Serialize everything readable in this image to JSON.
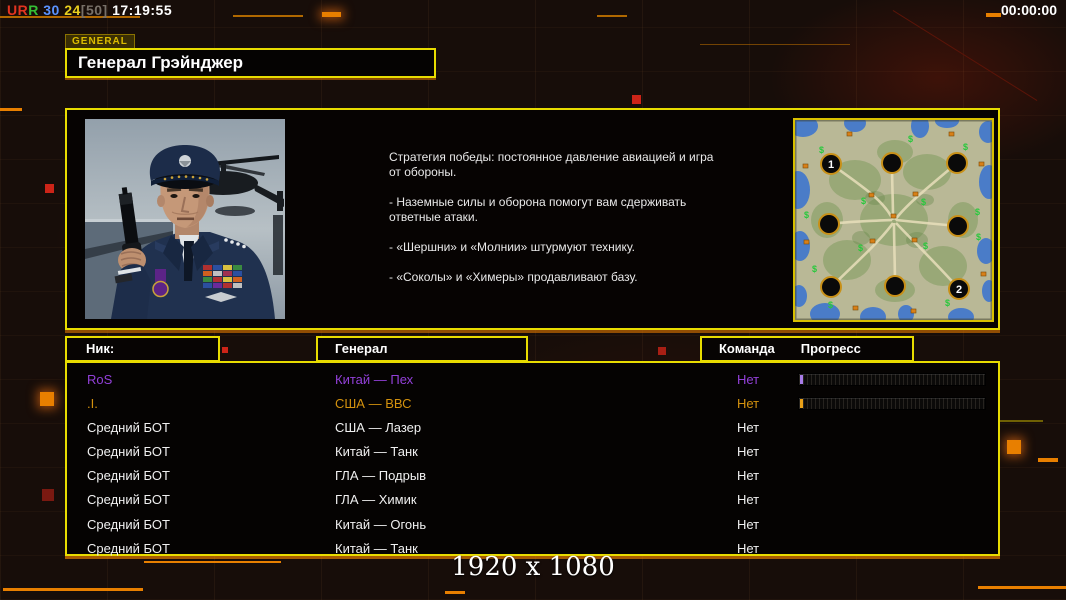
{
  "top_bar": {
    "left_parts": [
      {
        "text": "UR",
        "color": "#e23420",
        "note": ""
      },
      {
        "text": "R",
        "color": "#35c035"
      },
      {
        "text": " 30",
        "color": "#5b93ff"
      },
      {
        "text": " 24",
        "color": "#e8cf1e"
      },
      {
        "text": "[50]",
        "color": "#787068"
      },
      {
        "text": " 17:19:55",
        "color": "#ffffff"
      }
    ],
    "right_time": "00:00:00"
  },
  "header": {
    "tab_label": "GENERAL",
    "title": "Генерал Грэйнджер"
  },
  "info_panel": {
    "strategy_paragraphs": [
      "Стратегия победы: постоянное давление авиацией и игра от обороны.",
      "- Наземные силы и оборона помогут вам сдерживать ответные атаки.",
      "- «Шершни» и «Молнии» штурмуют технику.",
      "- «Соколы» и «Химеры» продавливают базу."
    ],
    "minimap": {
      "position_labels": [
        "1",
        "2"
      ]
    }
  },
  "table": {
    "headers": {
      "nick": "Ник:",
      "general": "Генерал",
      "team": "Команда",
      "progress": "Прогресс"
    },
    "rows": [
      {
        "nick": "RoS",
        "general": "Китай — Пех",
        "team": "Нет",
        "color": "#9240d8",
        "has_progress": true,
        "accent": "#a87ce8"
      },
      {
        "nick": ".I.",
        "general": "США — ВВС",
        "team": "Нет",
        "color": "#d4920e",
        "has_progress": true,
        "accent": "#e8a018"
      },
      {
        "nick": "Средний БОТ",
        "general": "США — Лазер",
        "team": "Нет",
        "color": "#f0f0f0",
        "has_progress": false,
        "accent": ""
      },
      {
        "nick": "Средний БОТ",
        "general": "Китай — Танк",
        "team": "Нет",
        "color": "#f0f0f0",
        "has_progress": false,
        "accent": ""
      },
      {
        "nick": "Средний БОТ",
        "general": "ГЛА — Подрыв",
        "team": "Нет",
        "color": "#f0f0f0",
        "has_progress": false,
        "accent": ""
      },
      {
        "nick": "Средний БОТ",
        "general": "ГЛА — Химик",
        "team": "Нет",
        "color": "#f0f0f0",
        "has_progress": false,
        "accent": ""
      },
      {
        "nick": "Средний БОТ",
        "general": "Китай — Огонь",
        "team": "Нет",
        "color": "#f0f0f0",
        "has_progress": false,
        "accent": ""
      },
      {
        "nick": "Средний БОТ",
        "general": "Китай — Танк",
        "team": "Нет",
        "color": "#f0f0f0",
        "has_progress": false,
        "accent": ""
      }
    ]
  },
  "footer": {
    "resolution": "1920 x 1080"
  },
  "colors": {
    "border_yellow": "#e8dc00",
    "accent_orange": "#e87f00",
    "red_marker": "#cc2418",
    "row_purple": "#9240d8",
    "row_gold": "#d4920e",
    "text_white": "#f0f0f0"
  }
}
